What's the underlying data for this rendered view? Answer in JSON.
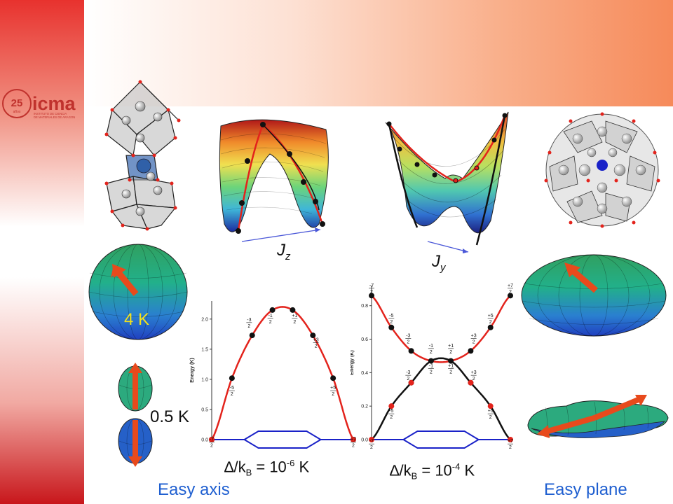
{
  "logo": {
    "anniversary": "25",
    "anniversary_sub": "años",
    "brand": "icma",
    "institute_line1": "INSTITUTO DE CIENCIA",
    "institute_line2": "DE MATERIALES DE ARAGON"
  },
  "labels": {
    "jz": "J",
    "jz_sub": "z",
    "jy": "J",
    "jy_sub": "y",
    "temp_4k": "4 K",
    "temp_05k": "0.5 K",
    "easy_axis": "Easy axis",
    "easy_plane": "Easy plane",
    "delta_left_prefix": "∆/k",
    "delta_left_sub": "B",
    "delta_left_mid": " = 10",
    "delta_left_exp": "-6",
    "delta_left_unit": " K",
    "delta_right_prefix": "∆/k",
    "delta_right_sub": "B",
    "delta_right_mid": " = 10",
    "delta_right_exp": "-4",
    "delta_right_unit": " K"
  },
  "colors": {
    "red": "#e3231c",
    "black": "#111111",
    "blue": "#1a22c8",
    "label_blue": "#1f5fd0",
    "temp_yellow": "#f5e21a"
  },
  "chart_data": [
    {
      "type": "line",
      "ylabel": "Energy (K)",
      "ylim": [
        0,
        2.3
      ],
      "yticks": [
        "0.0",
        "0.5",
        "1.0",
        "1.5",
        "2.0"
      ],
      "ytick_values": [
        0,
        0.5,
        1.0,
        1.5,
        2.0
      ],
      "xlim": [
        -3.5,
        3.5
      ],
      "series": [
        {
          "color": "#e3231c",
          "x": [
            -3.5,
            -2.5,
            -1.5,
            -0.5,
            0.5,
            1.5,
            2.5,
            3.5
          ],
          "y": [
            0.0,
            1.02,
            1.73,
            2.15,
            2.15,
            1.73,
            1.02,
            0.0
          ],
          "points": [
            0,
            1,
            2,
            3,
            4,
            5,
            6,
            7
          ]
        }
      ],
      "point_labels": [
        {
          "num": "-7",
          "den": "2",
          "x": -3.5,
          "y": -0.05
        },
        {
          "num": "-5",
          "den": "2",
          "x": -2.5,
          "y": 0.8
        },
        {
          "num": "-3",
          "den": "2",
          "x": -1.65,
          "y": 1.93
        },
        {
          "num": "-1",
          "den": "2",
          "x": -0.6,
          "y": 2.0
        },
        {
          "num": "+1",
          "den": "2",
          "x": 0.6,
          "y": 2.0
        },
        {
          "num": "+3",
          "den": "2",
          "x": 1.65,
          "y": 1.6
        },
        {
          "num": "+5",
          "den": "2",
          "x": 2.5,
          "y": 0.8
        },
        {
          "num": "+7",
          "den": "2",
          "x": 3.5,
          "y": -0.05
        }
      ]
    },
    {
      "type": "line",
      "ylabel": "Energy (K)",
      "ylim": [
        0,
        0.92
      ],
      "yticks": [
        "0.0",
        "0.2",
        "0.4",
        "0.6",
        "0.8"
      ],
      "ytick_values": [
        0,
        0.2,
        0.4,
        0.6,
        0.8
      ],
      "xlim": [
        -3.5,
        3.5
      ],
      "series": [
        {
          "color": "#e3231c",
          "x": [
            -3.5,
            -2.5,
            -1.5,
            -0.5,
            0.5,
            1.5,
            2.5,
            3.5
          ],
          "y": [
            0.86,
            0.67,
            0.53,
            0.47,
            0.47,
            0.53,
            0.67,
            0.86
          ],
          "points": [
            0,
            1,
            2,
            3,
            4,
            5,
            6,
            7
          ]
        },
        {
          "color": "#111111",
          "x": [
            -3.5,
            -2.5,
            -1.5,
            -0.5,
            0.5,
            1.5,
            2.5,
            3.5
          ],
          "y": [
            0.0,
            0.2,
            0.34,
            0.47,
            0.47,
            0.34,
            0.2,
            0.0
          ],
          "points": [
            2,
            5
          ]
        }
      ],
      "red_markers_on_black": [
        1,
        2,
        5,
        6
      ],
      "point_labels": [
        {
          "num": "-7",
          "den": "2",
          "x": -3.5,
          "y": 0.9
        },
        {
          "num": "-5",
          "den": "2",
          "x": -2.5,
          "y": 0.72
        },
        {
          "num": "-3",
          "den": "2",
          "x": -1.65,
          "y": 0.6
        },
        {
          "num": "-1",
          "den": "2",
          "x": -0.5,
          "y": 0.54
        },
        {
          "num": "+1",
          "den": "2",
          "x": 0.5,
          "y": 0.54
        },
        {
          "num": "+3",
          "den": "2",
          "x": 1.65,
          "y": 0.6
        },
        {
          "num": "+5",
          "den": "2",
          "x": 2.5,
          "y": 0.72
        },
        {
          "num": "+7",
          "den": "2",
          "x": 3.5,
          "y": 0.9
        },
        {
          "num": "-3",
          "den": "2",
          "x": -1.65,
          "y": 0.38
        },
        {
          "num": "-1",
          "den": "2",
          "x": -0.5,
          "y": 0.42
        },
        {
          "num": "+1",
          "den": "2",
          "x": 0.5,
          "y": 0.42
        },
        {
          "num": "+3",
          "den": "2",
          "x": 1.65,
          "y": 0.38
        },
        {
          "num": "-5",
          "den": "2",
          "x": -2.5,
          "y": 0.15
        },
        {
          "num": "+5",
          "den": "2",
          "x": 2.5,
          "y": 0.15
        },
        {
          "num": "-7",
          "den": "2",
          "x": -3.5,
          "y": -0.03
        },
        {
          "num": "+7",
          "den": "2",
          "x": 3.5,
          "y": -0.03
        }
      ]
    }
  ]
}
